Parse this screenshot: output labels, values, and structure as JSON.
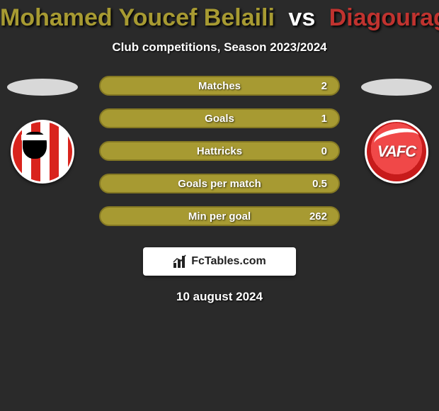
{
  "header": {
    "player1": "Mohamed Youcef Belaili",
    "vs": "vs",
    "player2": "Diagouraga",
    "player1_color": "#a79a32",
    "vs_color": "#ffffff",
    "player2_color": "#c0332f",
    "subtitle": "Club competitions, Season 2023/2024"
  },
  "players": {
    "left": {
      "silhouette_color": "#d8d8d8",
      "club": "AC Ajaccio",
      "badge_bg": "#ffffff"
    },
    "right": {
      "silhouette_color": "#d8d8d8",
      "club": "Valenciennes FC",
      "badge_bg": "#ffffff"
    }
  },
  "comparison": {
    "accent_color": "#a79a32",
    "border_color": "#847823",
    "text_color": "#ffffff",
    "rows": [
      {
        "label": "Matches",
        "left": "",
        "right": "2"
      },
      {
        "label": "Goals",
        "left": "",
        "right": "1"
      },
      {
        "label": "Hattricks",
        "left": "",
        "right": "0"
      },
      {
        "label": "Goals per match",
        "left": "",
        "right": "0.5"
      },
      {
        "label": "Min per goal",
        "left": "",
        "right": "262"
      }
    ]
  },
  "footer": {
    "logo_text": "FcTables.com",
    "date": "10 august 2024"
  }
}
